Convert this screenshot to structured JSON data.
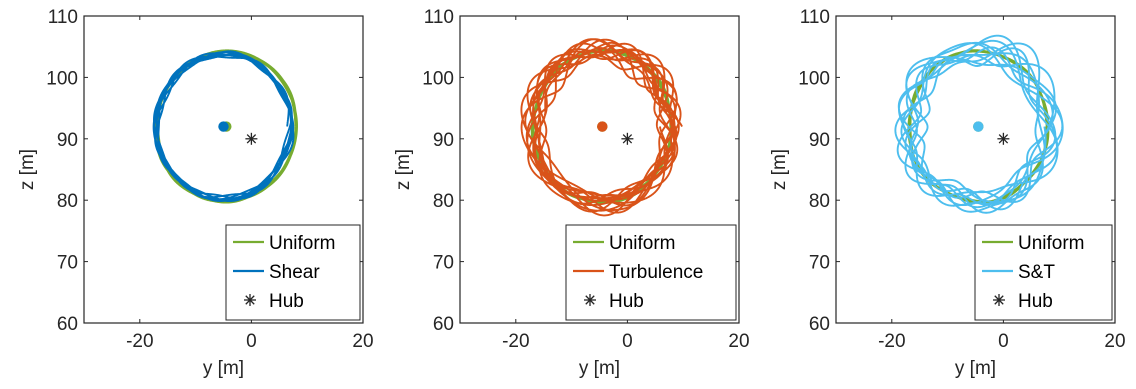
{
  "chart_data": [
    {
      "type": "line",
      "xlabel": "y [m]",
      "ylabel": "z [m]",
      "xlim": [
        -30,
        20
      ],
      "ylim": [
        60,
        110
      ],
      "xticks": [
        "-20",
        "0",
        "20"
      ],
      "yticks": [
        "60",
        "70",
        "80",
        "90",
        "100",
        "110"
      ],
      "legend_position": "bottom-right",
      "series": [
        {
          "name": "Uniform",
          "color": "#77AC30",
          "center": [
            -4.5,
            92.0
          ],
          "radius": 12.5,
          "wobble": 0.3,
          "rotations": 3
        },
        {
          "name": "Shear",
          "color": "#0072BD",
          "center": [
            -5.0,
            92.0
          ],
          "radius": 12.0,
          "wobble": 0.6,
          "rotations": 8
        },
        {
          "name": "Hub",
          "color": "#262626",
          "marker": "asterisk",
          "x": [
            0
          ],
          "y": [
            90
          ]
        }
      ]
    },
    {
      "type": "line",
      "xlabel": "y [m]",
      "ylabel": "z [m]",
      "xlim": [
        -30,
        20
      ],
      "ylim": [
        60,
        110
      ],
      "xticks": [
        "-20",
        "0",
        "20"
      ],
      "yticks": [
        "60",
        "70",
        "80",
        "90",
        "100",
        "110"
      ],
      "legend_position": "bottom-right",
      "series": [
        {
          "name": "Uniform",
          "color": "#77AC30",
          "center": [
            -4.5,
            92.0
          ],
          "radius": 12.5,
          "wobble": 0.3,
          "rotations": 3
        },
        {
          "name": "Turbulence",
          "color": "#D95319",
          "center": [
            -4.5,
            92.0
          ],
          "radius": 12.5,
          "wobble": 2.2,
          "rotations": 14
        },
        {
          "name": "Hub",
          "color": "#262626",
          "marker": "asterisk",
          "x": [
            0
          ],
          "y": [
            90
          ]
        }
      ]
    },
    {
      "type": "line",
      "xlabel": "y [m]",
      "ylabel": "z [m]",
      "xlim": [
        -30,
        20
      ],
      "ylim": [
        60,
        110
      ],
      "xticks": [
        "-20",
        "0",
        "20"
      ],
      "yticks": [
        "60",
        "70",
        "80",
        "90",
        "100",
        "110"
      ],
      "legend_position": "bottom-right",
      "series": [
        {
          "name": "Uniform",
          "color": "#77AC30",
          "center": [
            -4.5,
            92.0
          ],
          "radius": 12.5,
          "wobble": 0.3,
          "rotations": 3
        },
        {
          "name": "S&T",
          "color": "#4DBEEE",
          "center": [
            -4.5,
            92.0
          ],
          "radius": 12.5,
          "wobble": 2.8,
          "rotations": 10
        },
        {
          "name": "Hub",
          "color": "#262626",
          "marker": "asterisk",
          "x": [
            0
          ],
          "y": [
            90
          ]
        }
      ]
    }
  ]
}
